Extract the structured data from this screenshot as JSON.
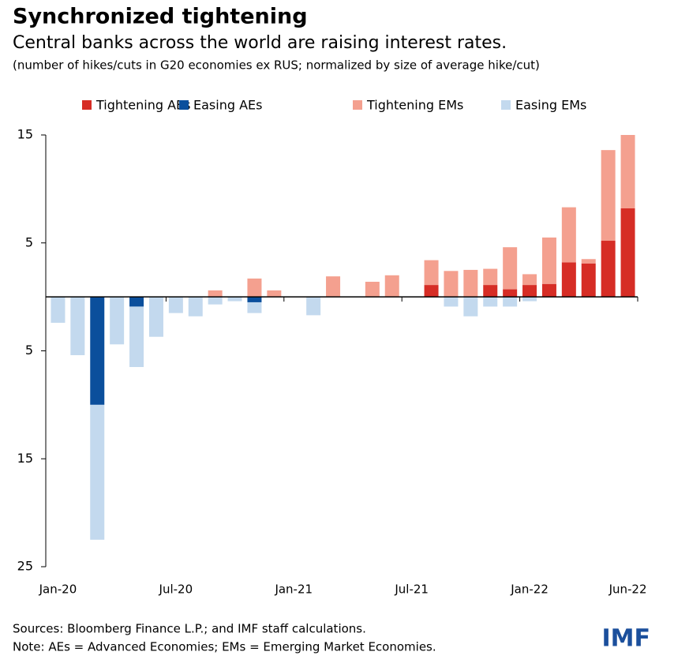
{
  "chart_data": {
    "type": "stacked_bar",
    "title": "Synchronized tightening",
    "subtitle": "Central banks across the world are raising interest rates.",
    "note": "(number of hikes/cuts in G20 economies ex RUS; normalized by size of average hike/cut)",
    "categories": [
      "Jan-20",
      null,
      null,
      null,
      null,
      null,
      "Jul-20",
      null,
      null,
      null,
      null,
      null,
      "Jan-21",
      null,
      null,
      null,
      null,
      null,
      "Jul-21",
      null,
      null,
      null,
      null,
      null,
      "Jan-22",
      null,
      null,
      null,
      null,
      "Jun-22"
    ],
    "series": [
      {
        "name": "Tightening AEs",
        "color": "#d62d25",
        "values": [
          0,
          0,
          0,
          0,
          0,
          0,
          0,
          0,
          0,
          0,
          0,
          0,
          0,
          0,
          0,
          0,
          0,
          0,
          0,
          1.1,
          0,
          0,
          1.1,
          0.7,
          1.1,
          1.2,
          3.2,
          3.1,
          5.2,
          8.2
        ]
      },
      {
        "name": "Easing AEs",
        "color": "#0b4f9c",
        "values": [
          0,
          0,
          -10,
          0,
          -0.9,
          0,
          0,
          0,
          0,
          0,
          -0.5,
          0,
          0,
          0,
          0,
          0,
          0,
          0,
          0,
          0,
          0,
          0,
          0,
          0,
          0,
          0,
          0,
          0,
          0,
          0
        ]
      },
      {
        "name": "Tightening EMs",
        "color": "#f4a08f",
        "values": [
          0,
          0,
          0,
          0,
          0,
          0,
          0,
          0,
          0.6,
          0,
          1.7,
          0.6,
          0,
          0,
          1.9,
          0,
          1.4,
          2.0,
          0,
          2.3,
          2.4,
          2.5,
          1.5,
          3.9,
          1.0,
          4.3,
          5.1,
          0.4,
          8.4,
          6.8
        ]
      },
      {
        "name": "Easing EMs",
        "color": "#c3d9ee",
        "values": [
          -2.4,
          -5.4,
          -12.5,
          -4.4,
          -5.6,
          -3.7,
          -1.5,
          -1.8,
          -0.7,
          -0.4,
          -1.0,
          0,
          0,
          -1.7,
          0,
          0,
          0,
          0,
          0,
          0,
          -0.9,
          -1.8,
          -0.9,
          -0.9,
          -0.4,
          0,
          0,
          0,
          0,
          0
        ]
      }
    ],
    "ylim": [
      -25,
      15
    ],
    "yticks": [
      15,
      5,
      {
        "value": -5,
        "label": "5"
      },
      {
        "value": -15,
        "label": "15"
      },
      {
        "value": -25,
        "label": "25"
      }
    ],
    "legend": "top",
    "sources": "Sources: Bloomberg Finance L.P.; and IMF staff calculations.",
    "footnote": "Note: AEs = Advanced Economies; EMs = Emerging Market Economies.",
    "logo": "IMF"
  }
}
